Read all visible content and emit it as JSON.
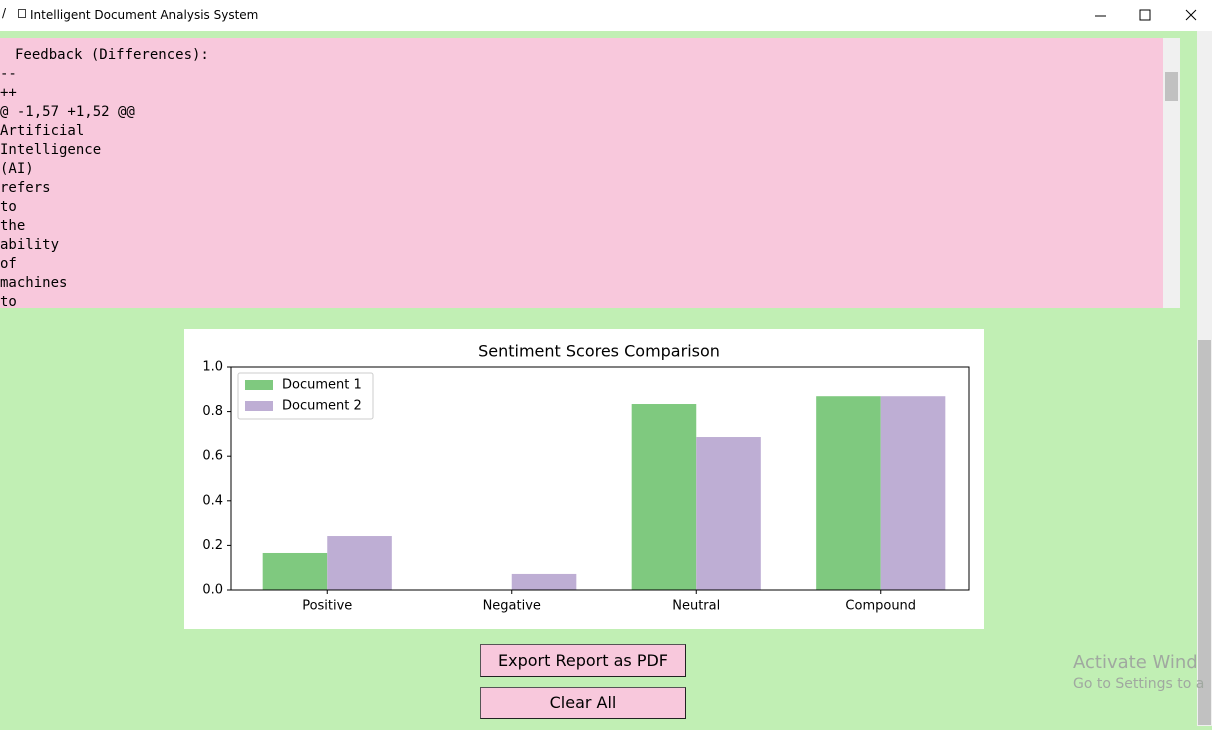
{
  "window": {
    "title": "Intelligent Document Analysis System"
  },
  "feedback": {
    "lines": [
      "Feedback (Differences):",
      "--",
      "++",
      "@ -1,57 +1,52 @@",
      "Artificial",
      "Intelligence",
      "(AI)",
      "refers",
      "to",
      "the",
      "ability",
      "of",
      "machines",
      "to"
    ]
  },
  "chart_data": {
    "type": "bar",
    "title": "Sentiment Scores Comparison",
    "categories": [
      "Positive",
      "Negative",
      "Neutral",
      "Compound"
    ],
    "series": [
      {
        "name": "Document 1",
        "color": "#7fc97f",
        "values": [
          0.166,
          0.0,
          0.834,
          0.869
        ]
      },
      {
        "name": "Document 2",
        "color": "#beaed4",
        "values": [
          0.242,
          0.072,
          0.686,
          0.869
        ]
      }
    ],
    "ylim": [
      0,
      1.0
    ],
    "yticks": [
      {
        "value": 0,
        "label": "0.0"
      },
      {
        "value": 0.2,
        "label": "0.2"
      },
      {
        "value": 0.4,
        "label": "0.4"
      },
      {
        "value": 0.6,
        "label": "0.6"
      },
      {
        "value": 0.8,
        "label": "0.8"
      },
      {
        "value": 1.0,
        "label": "1.0"
      }
    ],
    "legend": "upper left"
  },
  "buttons": {
    "export": "Export Report as PDF",
    "clear": "Clear All"
  },
  "watermark": {
    "line1": "Activate Wind",
    "line2": "Go to Settings to a"
  }
}
